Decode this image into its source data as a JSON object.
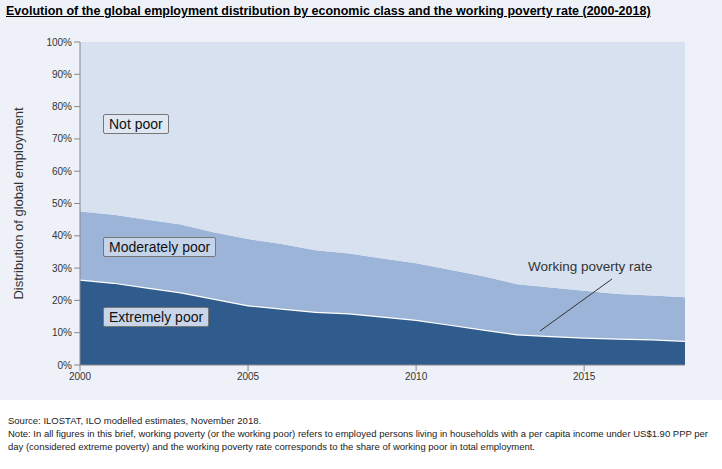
{
  "chart_data": {
    "type": "area",
    "title": "Evolution of the global employment distribution by economic class and the working poverty rate (2000-2018)",
    "y_label": "Distribution of global employment",
    "stacked": true,
    "grid": false,
    "x": [
      2000,
      2001,
      2002,
      2003,
      2004,
      2005,
      2006,
      2007,
      2008,
      2009,
      2010,
      2011,
      2012,
      2013,
      2014,
      2015,
      2016,
      2017,
      2018
    ],
    "xlim": [
      2000,
      2018
    ],
    "xticks": [
      2000,
      2005,
      2010,
      2015
    ],
    "ylim": [
      0,
      100
    ],
    "yticks": [
      {
        "value": 0,
        "label": "0%"
      },
      {
        "value": 10,
        "label": "10%"
      },
      {
        "value": 20,
        "label": "20%"
      },
      {
        "value": 30,
        "label": "30%"
      },
      {
        "value": 40,
        "label": "40%"
      },
      {
        "value": 50,
        "label": "50%"
      },
      {
        "value": 60,
        "label": "60%"
      },
      {
        "value": 70,
        "label": "70%"
      },
      {
        "value": 80,
        "label": "80%"
      },
      {
        "value": 90,
        "label": "90%"
      },
      {
        "value": 100,
        "label": "100%"
      }
    ],
    "series": [
      {
        "name": "Extremely poor",
        "color": "#2f5b8d",
        "values": [
          26.5,
          25.5,
          24,
          22.5,
          20.5,
          18.5,
          17.5,
          16.5,
          16,
          15,
          14,
          12.5,
          11,
          9.5,
          9,
          8.5,
          8.2,
          8,
          7.5
        ]
      },
      {
        "name": "Moderately poor",
        "color": "#9bb4d8",
        "values": [
          21,
          21,
          21,
          21,
          20.5,
          20.5,
          20,
          19,
          18.5,
          18,
          17.5,
          17,
          16.5,
          15.5,
          15,
          14.5,
          13.8,
          13.5,
          13.5
        ]
      },
      {
        "name": "Not poor",
        "color": "#d7e1f0",
        "values": [
          52.5,
          53.5,
          55,
          56.5,
          59,
          61,
          62.5,
          64.5,
          65.5,
          67,
          68.5,
          70.5,
          72.5,
          75,
          76,
          77,
          78,
          78.5,
          79
        ]
      }
    ],
    "annotations": [
      {
        "text": "Working poverty rate"
      }
    ],
    "source": "Source: ILOSTAT, ILO modelled estimates, November 2018.",
    "note": "Note: In all figures in this brief, working poverty (or the working poor) refers to employed persons living in households with a per capita income under US$1.90 PPP per day (considered extreme poverty) and the working poverty rate corresponds to the share of working poor in total employment."
  }
}
